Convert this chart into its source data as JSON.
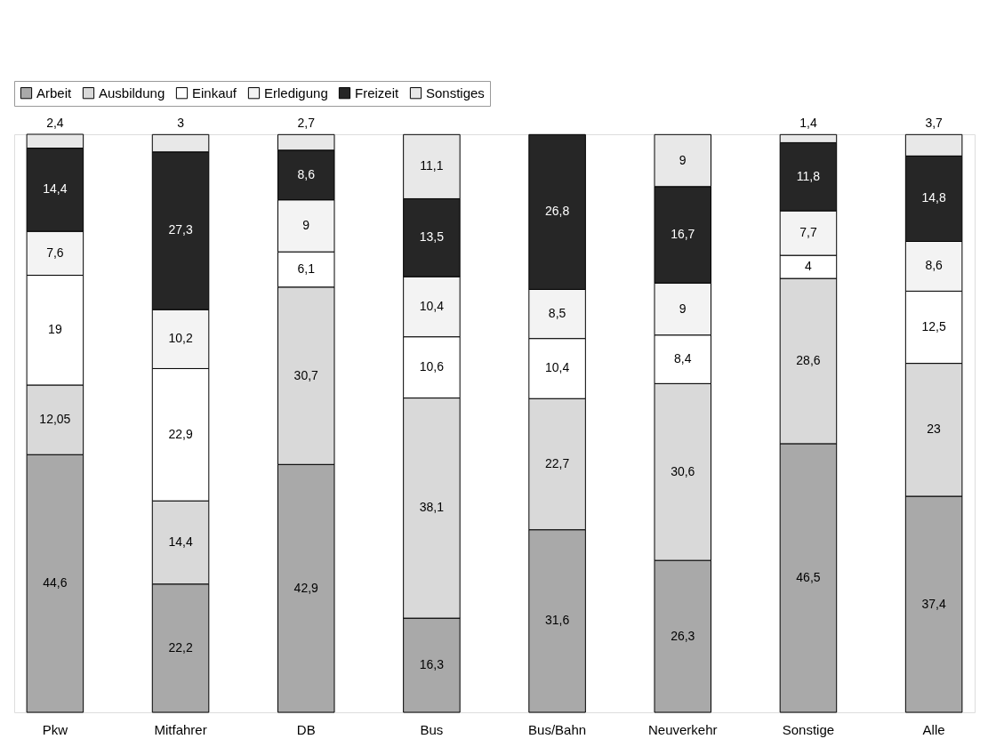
{
  "chart_data": {
    "type": "bar",
    "stacked": true,
    "legend": "top left",
    "data_labels": true,
    "categories": [
      "Pkw",
      "Mitfahrer",
      "DB",
      "Bus",
      "Bus/Bahn",
      "Neuverkehr",
      "Sonstige",
      "Alle"
    ],
    "series": [
      {
        "name": "Arbeit",
        "color": "#a9a9a9",
        "values": [
          44.6,
          22.2,
          42.9,
          16.3,
          31.6,
          26.3,
          46.5,
          37.4
        ],
        "value_labels": [
          "44,6",
          "22,2",
          "42,9",
          "16,3",
          "31,6",
          "26,3",
          "46,5",
          "37,4"
        ]
      },
      {
        "name": "Ausbildung",
        "color": "#d9d9d9",
        "values": [
          12.05,
          14.4,
          30.7,
          38.1,
          22.7,
          30.6,
          28.6,
          23
        ],
        "value_labels": [
          "12,05",
          "14,4",
          "30,7",
          "38,1",
          "22,7",
          "30,6",
          "28,6",
          "23"
        ]
      },
      {
        "name": "Einkauf",
        "color": "#ffffff",
        "values": [
          19,
          22.9,
          6.1,
          10.6,
          10.4,
          8.4,
          4,
          12.5
        ],
        "value_labels": [
          "19",
          "22,9",
          "6,1",
          "10,6",
          "10,4",
          "8,4",
          "4",
          "12,5"
        ]
      },
      {
        "name": "Erledigung",
        "color": "#f3f3f3",
        "values": [
          7.6,
          10.2,
          9,
          10.4,
          8.5,
          9,
          7.7,
          8.6
        ],
        "value_labels": [
          "7,6",
          "10,2",
          "9",
          "10,4",
          "8,5",
          "9",
          "7,7",
          "8,6"
        ]
      },
      {
        "name": "Freizeit",
        "color": "#262626",
        "values": [
          14.4,
          27.3,
          8.6,
          13.5,
          26.8,
          16.7,
          11.8,
          14.8
        ],
        "value_labels": [
          "14,4",
          "27,3",
          "8,6",
          "13,5",
          "26,8",
          "16,7",
          "11,8",
          "14,8"
        ]
      },
      {
        "name": "Sonstiges",
        "color": "#e8e8e8",
        "values": [
          2.4,
          3,
          2.7,
          11.1,
          null,
          9,
          1.4,
          3.7
        ],
        "value_labels": [
          "2,4",
          "3",
          "2,7",
          "11,1",
          null,
          "9",
          "1,4",
          "3,7"
        ]
      }
    ]
  }
}
